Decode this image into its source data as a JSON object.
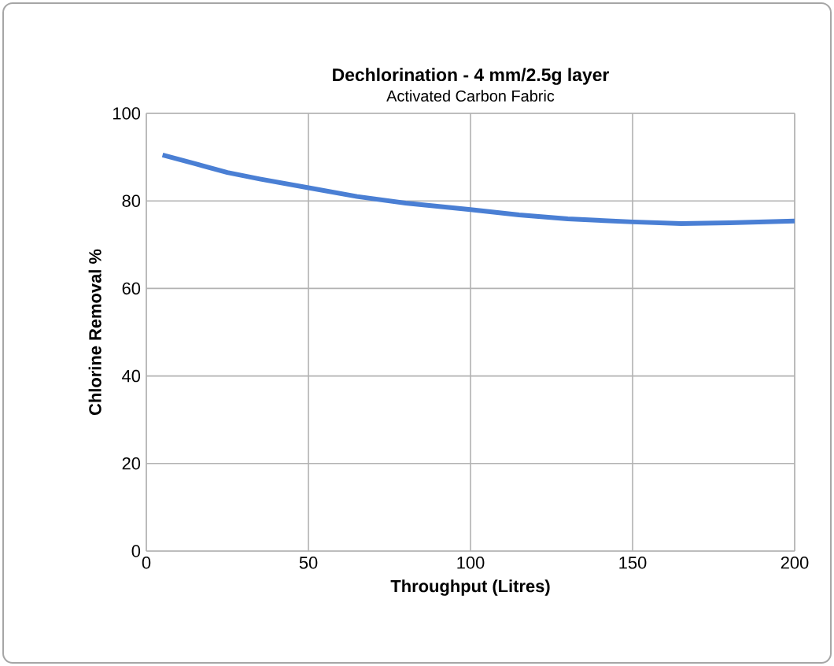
{
  "chart_data": {
    "type": "line",
    "title": "Dechlorination -  4 mm/2.5g layer",
    "subtitle": "Activated Carbon Fabric",
    "xlabel": "Throughput (Litres)",
    "ylabel": "Chlorine Removal %",
    "x": [
      5,
      15,
      25,
      35,
      50,
      65,
      80,
      100,
      115,
      130,
      150,
      165,
      180,
      200
    ],
    "series": [
      {
        "color": "#4a7fd4",
        "values": [
          90.5,
          88.5,
          86.5,
          85,
          83,
          81,
          79.5,
          78,
          76.8,
          75.9,
          75.2,
          74.8,
          75,
          75.4
        ]
      }
    ],
    "xlim": [
      0,
      200
    ],
    "ylim": [
      0,
      100
    ],
    "xticks": [
      0,
      50,
      100,
      150,
      200
    ],
    "yticks": [
      0,
      20,
      40,
      60,
      80,
      100
    ],
    "grid": true,
    "marker": "none",
    "line_style": "solid"
  }
}
